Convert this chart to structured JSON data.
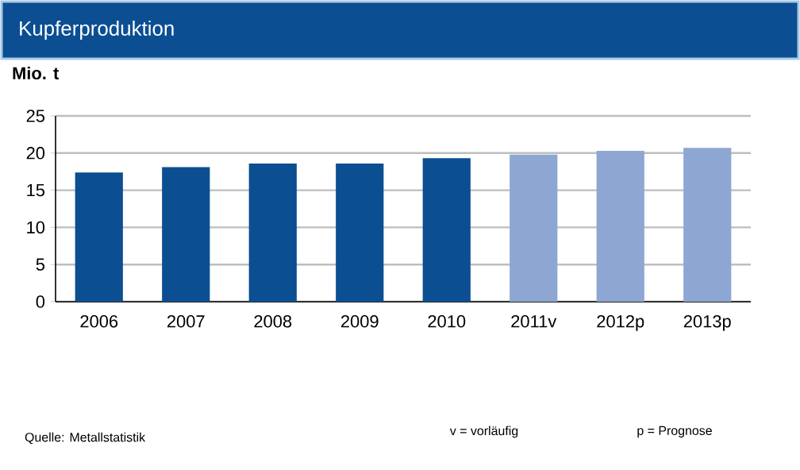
{
  "chart_data": {
    "type": "bar",
    "title": "Kupferproduktion",
    "ylabel": "Mio. t",
    "categories": [
      "2006",
      "2007",
      "2008",
      "2009",
      "2010",
      "2011v",
      "2012p",
      "2013p"
    ],
    "values": [
      17.4,
      18.1,
      18.6,
      18.6,
      19.3,
      19.8,
      20.3,
      20.7
    ],
    "colors": [
      "#0b4f92",
      "#0b4f92",
      "#0b4f92",
      "#0b4f92",
      "#0b4f92",
      "#8ea6d2",
      "#8ea6d2",
      "#8ea6d2"
    ],
    "ylim": [
      0,
      25
    ],
    "yticks": [
      0,
      5,
      10,
      15,
      20,
      25
    ],
    "grid": "y",
    "annotations": [
      "Quelle:  Metallstatistik",
      "v = vorläufig",
      "p = Prognose"
    ]
  }
}
